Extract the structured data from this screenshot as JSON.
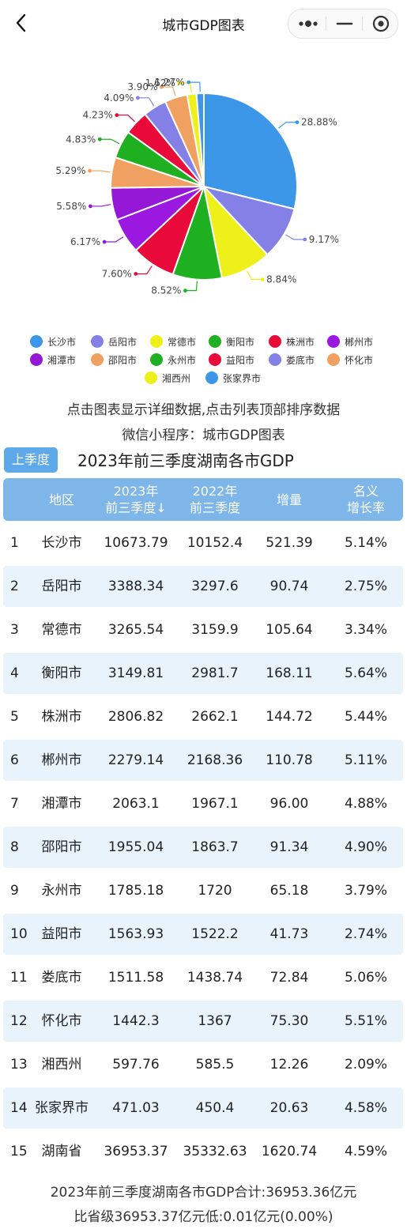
{
  "nav": {
    "title": "城市GDP图表"
  },
  "chart_data": {
    "type": "pie",
    "title": "",
    "slices": [
      {
        "name": "长沙市",
        "value": 28.88,
        "label": "28.88%",
        "color": "#3c97e8"
      },
      {
        "name": "岳阳市",
        "value": 9.17,
        "label": "9.17%",
        "color": "#8480e6"
      },
      {
        "name": "常德市",
        "value": 8.84,
        "label": "8.84%",
        "color": "#eef01a"
      },
      {
        "name": "衡阳市",
        "value": 8.52,
        "label": "8.52%",
        "color": "#1fb022"
      },
      {
        "name": "株洲市",
        "value": 7.6,
        "label": "7.60%",
        "color": "#ea0a3a"
      },
      {
        "name": "郴州市",
        "value": 6.17,
        "label": "6.17%",
        "color": "#9a18e0"
      },
      {
        "name": "湘潭市",
        "value": 5.58,
        "label": "5.58%",
        "color": "#9418d6"
      },
      {
        "name": "邵阳市",
        "value": 5.29,
        "label": "5.29%",
        "color": "#f0a060"
      },
      {
        "name": "永州市",
        "value": 4.83,
        "label": "4.83%",
        "color": "#1fb022"
      },
      {
        "name": "益阳市",
        "value": 4.23,
        "label": "4.23%",
        "color": "#ea0a3a"
      },
      {
        "name": "娄底市",
        "value": 4.09,
        "label": "4.09%",
        "color": "#8480e6"
      },
      {
        "name": "怀化市",
        "value": 3.9,
        "label": "3.90%",
        "color": "#f0a060"
      },
      {
        "name": "湘西州",
        "value": 1.62,
        "label": "1.62%",
        "color": "#eef01a"
      },
      {
        "name": "张家界市",
        "value": 1.27,
        "label": "1.27%",
        "color": "#3c97e8"
      }
    ],
    "legend_position": "bottom"
  },
  "legend": [
    {
      "name": "长沙市",
      "color": "#3c97e8"
    },
    {
      "name": "岳阳市",
      "color": "#8480e6"
    },
    {
      "name": "常德市",
      "color": "#eef01a"
    },
    {
      "name": "衡阳市",
      "color": "#1fb022"
    },
    {
      "name": "株洲市",
      "color": "#ea0a3a"
    },
    {
      "name": "郴州市",
      "color": "#9a18e0"
    },
    {
      "name": "湘潭市",
      "color": "#9418d6"
    },
    {
      "name": "邵阳市",
      "color": "#f0a060"
    },
    {
      "name": "永州市",
      "color": "#1fb022"
    },
    {
      "name": "益阳市",
      "color": "#ea0a3a"
    },
    {
      "name": "娄底市",
      "color": "#8480e6"
    },
    {
      "name": "怀化市",
      "color": "#f0a060"
    },
    {
      "name": "湘西州",
      "color": "#eef01a"
    },
    {
      "name": "张家界市",
      "color": "#3c97e8"
    }
  ],
  "hint": {
    "line1": "点击图表显示详细数据,点击列表顶部排序数据",
    "line2": "微信小程序：城市GDP图表"
  },
  "quarter_button": "上季度",
  "table_title": "2023年前三季度湖南各市GDP",
  "table": {
    "headers": [
      "地区",
      "2023年\n前三季度↓",
      "2022年\n前三季度",
      "增量",
      "名义\n增长率"
    ],
    "rows": [
      {
        "rank": "1",
        "region": "长沙市",
        "y2023": "10673.79",
        "y2022": "10152.4",
        "inc": "521.39",
        "rate": "5.14%"
      },
      {
        "rank": "2",
        "region": "岳阳市",
        "y2023": "3388.34",
        "y2022": "3297.6",
        "inc": "90.74",
        "rate": "2.75%"
      },
      {
        "rank": "3",
        "region": "常德市",
        "y2023": "3265.54",
        "y2022": "3159.9",
        "inc": "105.64",
        "rate": "3.34%"
      },
      {
        "rank": "4",
        "region": "衡阳市",
        "y2023": "3149.81",
        "y2022": "2981.7",
        "inc": "168.11",
        "rate": "5.64%"
      },
      {
        "rank": "5",
        "region": "株洲市",
        "y2023": "2806.82",
        "y2022": "2662.1",
        "inc": "144.72",
        "rate": "5.44%"
      },
      {
        "rank": "6",
        "region": "郴州市",
        "y2023": "2279.14",
        "y2022": "2168.36",
        "inc": "110.78",
        "rate": "5.11%"
      },
      {
        "rank": "7",
        "region": "湘潭市",
        "y2023": "2063.1",
        "y2022": "1967.1",
        "inc": "96.00",
        "rate": "4.88%"
      },
      {
        "rank": "8",
        "region": "邵阳市",
        "y2023": "1955.04",
        "y2022": "1863.7",
        "inc": "91.34",
        "rate": "4.90%"
      },
      {
        "rank": "9",
        "region": "永州市",
        "y2023": "1785.18",
        "y2022": "1720",
        "inc": "65.18",
        "rate": "3.79%"
      },
      {
        "rank": "10",
        "region": "益阳市",
        "y2023": "1563.93",
        "y2022": "1522.2",
        "inc": "41.73",
        "rate": "2.74%"
      },
      {
        "rank": "11",
        "region": "娄底市",
        "y2023": "1511.58",
        "y2022": "1438.74",
        "inc": "72.84",
        "rate": "5.06%"
      },
      {
        "rank": "12",
        "region": "怀化市",
        "y2023": "1442.3",
        "y2022": "1367",
        "inc": "75.30",
        "rate": "5.51%"
      },
      {
        "rank": "13",
        "region": "湘西州",
        "y2023": "597.76",
        "y2022": "585.5",
        "inc": "12.26",
        "rate": "2.09%"
      },
      {
        "rank": "14",
        "region": "张家界市",
        "y2023": "471.03",
        "y2022": "450.4",
        "inc": "20.63",
        "rate": "4.58%"
      },
      {
        "rank": "15",
        "region": "湖南省",
        "y2023": "36953.37",
        "y2022": "35332.63",
        "inc": "1620.74",
        "rate": "4.59%"
      }
    ]
  },
  "footer": {
    "line1": "2023年前三季度湖南各市GDP合计:36953.36亿元",
    "line2": "比省级36953.37亿元低:0.01亿元(0.00%)"
  },
  "colors": {
    "accent": "#5da9e9",
    "header_bg": "#7eb6ea",
    "row_alt": "#e8f3fb"
  },
  "icons": {
    "back": "chevron-left-icon",
    "more": "more-dots-icon",
    "minimize": "minimize-icon",
    "close": "close-circle-icon"
  }
}
